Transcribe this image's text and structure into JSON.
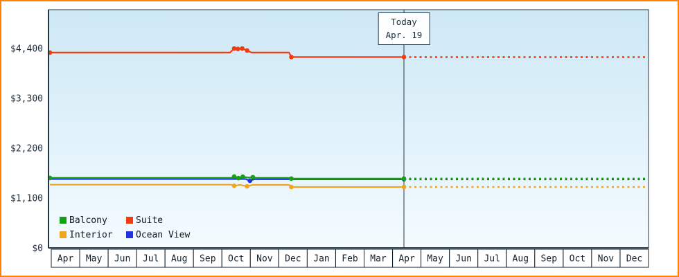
{
  "frame": {
    "border_color": "#ff8200"
  },
  "today_marker": {
    "line1": "Today",
    "line2": "Apr. 19"
  },
  "legend": {
    "items": [
      "Balcony",
      "Suite",
      "Interior",
      "Ocean View"
    ]
  },
  "chart_data": {
    "type": "line",
    "title": "",
    "x_span": 21,
    "today_t": 12.44,
    "x_months": [
      "Apr",
      "May",
      "Jun",
      "Jul",
      "Aug",
      "Sep",
      "Oct",
      "Nov",
      "Dec",
      "Jan",
      "Feb",
      "Mar",
      "Apr",
      "May",
      "Jun",
      "Jul",
      "Aug",
      "Sep",
      "Oct",
      "Nov",
      "Dec"
    ],
    "y_ticks": [
      {
        "label": "$0",
        "value": 0
      },
      {
        "label": "$1,100",
        "value": 1100
      },
      {
        "label": "$2,200",
        "value": 2200
      },
      {
        "label": "$3,300",
        "value": 3300
      },
      {
        "label": "$4,400",
        "value": 4400
      }
    ],
    "ylim": [
      0,
      5256
    ],
    "grid": false,
    "legend_position": "bottom-left",
    "series": [
      {
        "name": "Ocean View",
        "color": "#2133e0",
        "solid": [
          [
            0.05,
            1520
          ],
          [
            6.9,
            1520
          ],
          [
            7.05,
            1480
          ],
          [
            7.2,
            1515
          ],
          [
            12.44,
            1515
          ]
        ],
        "dots": [
          [
            7.05,
            1480
          ],
          [
            12.44,
            1515
          ]
        ],
        "future_value": 1515
      },
      {
        "name": "Interior",
        "color": "#efa61e",
        "solid": [
          [
            0.05,
            1395
          ],
          [
            6.4,
            1395
          ],
          [
            6.5,
            1370
          ],
          [
            6.7,
            1392
          ],
          [
            6.95,
            1360
          ],
          [
            7.15,
            1390
          ],
          [
            8.42,
            1390
          ],
          [
            8.5,
            1345
          ],
          [
            12.44,
            1345
          ]
        ],
        "dots": [
          [
            6.5,
            1370
          ],
          [
            6.95,
            1360
          ],
          [
            8.5,
            1345
          ],
          [
            12.44,
            1345
          ]
        ],
        "future_value": 1345
      },
      {
        "name": "Balcony",
        "color": "#16a016",
        "solid": [
          [
            0.05,
            1545
          ],
          [
            6.4,
            1545
          ],
          [
            6.5,
            1575
          ],
          [
            6.65,
            1540
          ],
          [
            6.8,
            1570
          ],
          [
            7.0,
            1550
          ],
          [
            7.15,
            1560
          ],
          [
            7.3,
            1545
          ],
          [
            8.42,
            1545
          ],
          [
            8.5,
            1530
          ],
          [
            12.44,
            1530
          ]
        ],
        "dots": [
          [
            0.05,
            1545
          ],
          [
            6.5,
            1575
          ],
          [
            6.65,
            1540
          ],
          [
            6.8,
            1570
          ],
          [
            7.15,
            1560
          ],
          [
            8.5,
            1530
          ],
          [
            12.44,
            1530
          ]
        ],
        "future_value": 1530
      },
      {
        "name": "Suite",
        "color": "#f23b10",
        "solid": [
          [
            0.05,
            4310
          ],
          [
            6.35,
            4310
          ],
          [
            6.5,
            4400
          ],
          [
            6.63,
            4390
          ],
          [
            6.78,
            4400
          ],
          [
            6.95,
            4355
          ],
          [
            7.1,
            4310
          ],
          [
            8.42,
            4310
          ],
          [
            8.5,
            4210
          ],
          [
            12.44,
            4210
          ]
        ],
        "dots": [
          [
            0.05,
            4310
          ],
          [
            6.5,
            4400
          ],
          [
            6.63,
            4390
          ],
          [
            6.78,
            4400
          ],
          [
            6.95,
            4355
          ],
          [
            8.5,
            4210
          ],
          [
            12.44,
            4210
          ]
        ],
        "future_value": 4210
      }
    ]
  }
}
